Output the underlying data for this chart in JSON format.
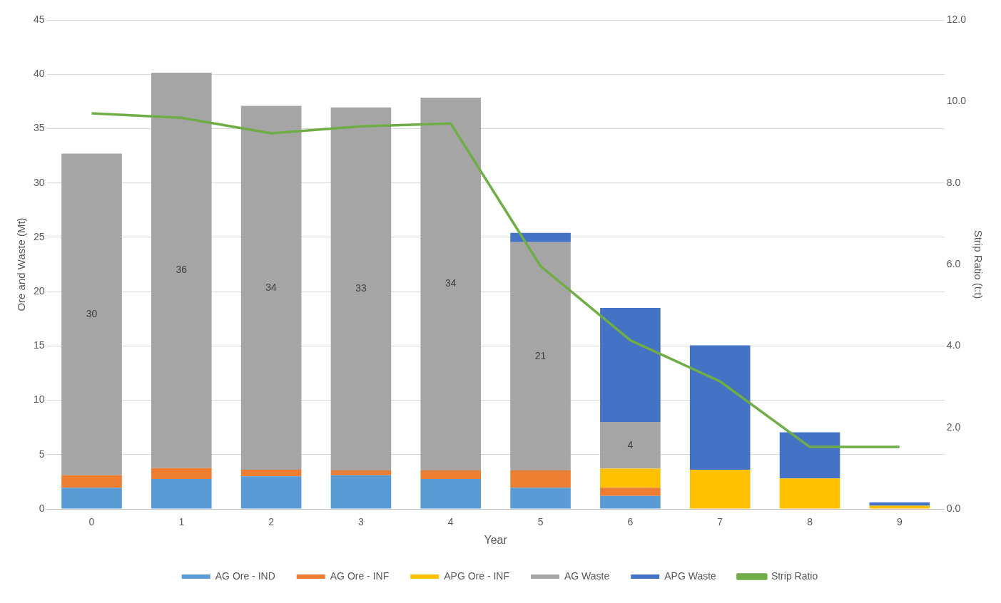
{
  "chart_data": {
    "type": "bar",
    "stacked": true,
    "xlabel": "Year",
    "ylabel": "Ore and Waste (Mt)",
    "y2label": "Strip Ratio (t:t)",
    "categories": [
      "0",
      "1",
      "2",
      "3",
      "4",
      "5",
      "6",
      "7",
      "8",
      "9"
    ],
    "series": [
      {
        "name": "AG Ore - IND",
        "color": "#5b9bd5",
        "values": [
          1.95,
          2.75,
          3.0,
          3.1,
          2.75,
          1.95,
          1.2,
          null,
          null,
          null
        ]
      },
      {
        "name": "AG Ore - INF",
        "color": "#ed7d31",
        "values": [
          1.15,
          1.0,
          0.6,
          0.45,
          0.8,
          1.6,
          0.75,
          null,
          null,
          null
        ]
      },
      {
        "name": "APG Ore - INF",
        "color": "#ffc000",
        "values": [
          null,
          null,
          null,
          null,
          null,
          null,
          1.75,
          3.6,
          2.8,
          0.3
        ]
      },
      {
        "name": "AG Waste",
        "color": "#a5a5a5",
        "values": [
          29.6,
          36.4,
          33.5,
          33.4,
          34.3,
          21.0,
          4.3,
          null,
          null,
          null
        ],
        "value_labels": [
          "30",
          "36",
          "34",
          "33",
          "34",
          "21",
          "4",
          null,
          null,
          null
        ]
      },
      {
        "name": "APG Waste",
        "color": "#4472c4",
        "values": [
          null,
          null,
          null,
          null,
          null,
          0.85,
          10.5,
          11.45,
          4.25,
          0.3
        ]
      },
      {
        "name": "Strip Ratio",
        "type": "line",
        "axis": "y2",
        "color": "#70ad47",
        "marker": "none",
        "values": [
          9.71,
          9.6,
          9.22,
          9.39,
          9.46,
          5.96,
          4.14,
          3.13,
          1.52,
          1.52
        ]
      }
    ],
    "ylim": [
      0,
      45
    ],
    "yticks": [
      0,
      5,
      10,
      15,
      20,
      25,
      30,
      35,
      40,
      45
    ],
    "y2lim": [
      0,
      12
    ],
    "y2ticks": [
      {
        "value": 0,
        "label": "0.0"
      },
      {
        "value": 2,
        "label": "2.0"
      },
      {
        "value": 4,
        "label": "4.0"
      },
      {
        "value": 6,
        "label": "6.0"
      },
      {
        "value": 8,
        "label": "8.0"
      },
      {
        "value": 10,
        "label": "10.0"
      },
      {
        "value": 12,
        "label": "12.0"
      }
    ],
    "grid": "y",
    "legend": "bottom"
  }
}
